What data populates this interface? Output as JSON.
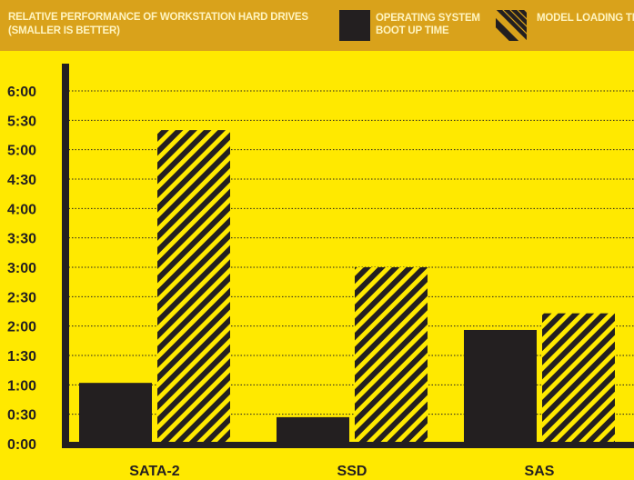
{
  "header": {
    "title": "RELATIVE PERFORMANCE OF WORKSTATION HARD DRIVES (SMALLER IS BETTER)"
  },
  "legend": [
    {
      "label": "OPERATING SYSTEM BOOT UP TIME",
      "icon": "solid-swatch-icon",
      "color": "#231f20"
    },
    {
      "label": "MODEL LOADING TIME",
      "icon": "hatched-swatch-icon",
      "color": "#231f20"
    }
  ],
  "colors": {
    "background": "#FFE900",
    "header": "#D9A21B",
    "bar": "#231f20",
    "hatch_fill": "#FFE900"
  },
  "chart_data": {
    "type": "bar",
    "title": "RELATIVE PERFORMANCE OF WORKSTATION HARD DRIVES (SMALLER IS BETTER)",
    "categories": [
      "SATA-2",
      "SSD",
      "SAS"
    ],
    "series": [
      {
        "name": "OPERATING SYSTEM BOOT UP TIME",
        "style": "solid",
        "values": [
          62,
          27,
          116
        ]
      },
      {
        "name": "MODEL LOADING TIME",
        "style": "hatched",
        "values": [
          320,
          180,
          133
        ]
      }
    ],
    "value_unit": "seconds",
    "ylim": [
      0,
      360
    ],
    "yticks": [
      {
        "value": 0,
        "label": "0:00"
      },
      {
        "value": 30,
        "label": "0:30"
      },
      {
        "value": 60,
        "label": "1:00"
      },
      {
        "value": 90,
        "label": "1:30"
      },
      {
        "value": 120,
        "label": "2:00"
      },
      {
        "value": 150,
        "label": "2:30"
      },
      {
        "value": 180,
        "label": "3:00"
      },
      {
        "value": 210,
        "label": "3:30"
      },
      {
        "value": 240,
        "label": "4:00"
      },
      {
        "value": 270,
        "label": "4:30"
      },
      {
        "value": 300,
        "label": "5:00"
      },
      {
        "value": 330,
        "label": "5:30"
      },
      {
        "value": 360,
        "label": "6:00"
      }
    ],
    "grid": true,
    "grid_style": "dotted",
    "legend_position": "top-right"
  }
}
